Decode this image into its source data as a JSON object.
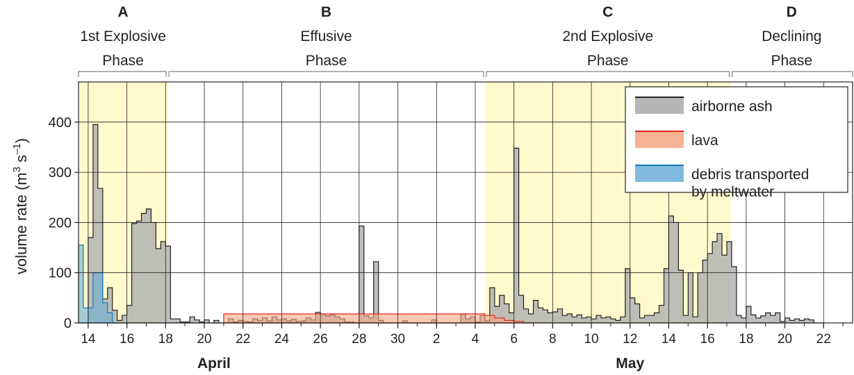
{
  "chart_data": {
    "type": "area",
    "ylabel_main": "volume rate (m",
    "ylabel_sup1": "3",
    "ylabel_mid": " s",
    "ylabel_sup2": "–1",
    "ylabel_end": ")",
    "ylim": [
      0,
      480
    ],
    "yticks": [
      0,
      100,
      200,
      300,
      400
    ],
    "xlim": [
      13.5,
      53.5
    ],
    "x_ticks": [
      {
        "x": 14,
        "label": "14"
      },
      {
        "x": 16,
        "label": "16"
      },
      {
        "x": 18,
        "label": "18"
      },
      {
        "x": 20,
        "label": "20"
      },
      {
        "x": 22,
        "label": "22"
      },
      {
        "x": 24,
        "label": "24"
      },
      {
        "x": 26,
        "label": "26"
      },
      {
        "x": 28,
        "label": "28"
      },
      {
        "x": 30,
        "label": "30"
      },
      {
        "x": 32,
        "label": "2"
      },
      {
        "x": 34,
        "label": "4"
      },
      {
        "x": 36,
        "label": "6"
      },
      {
        "x": 38,
        "label": "8"
      },
      {
        "x": 40,
        "label": "10"
      },
      {
        "x": 42,
        "label": "12"
      },
      {
        "x": 44,
        "label": "14"
      },
      {
        "x": 46,
        "label": "16"
      },
      {
        "x": 48,
        "label": "18"
      },
      {
        "x": 50,
        "label": "20"
      },
      {
        "x": 52,
        "label": "22"
      }
    ],
    "month_labels": [
      {
        "x": 20.5,
        "label": "April"
      },
      {
        "x": 42.0,
        "label": "May"
      }
    ],
    "grid": true,
    "phases": [
      {
        "letter": "A",
        "line1": "1st Explosive",
        "line2": "Phase",
        "start": 13.5,
        "end": 18.1,
        "shaded": true
      },
      {
        "letter": "B",
        "line1": "Effusive",
        "line2": "Phase",
        "start": 18.1,
        "end": 34.5,
        "shaded": false
      },
      {
        "letter": "C",
        "line1": "2nd Explosive",
        "line2": "Phase",
        "start": 34.5,
        "end": 47.2,
        "shaded": true
      },
      {
        "letter": "D",
        "line1": "Declining",
        "line2": "Phase",
        "start": 47.2,
        "end": 53.5,
        "shaded": false
      }
    ],
    "legend_position": "top-right",
    "series": [
      {
        "name": "airborne ash",
        "fill": "#a7a9ac",
        "stroke": "#231f20",
        "points": [
          [
            13.5,
            0
          ],
          [
            14.0,
            170
          ],
          [
            14.25,
            395
          ],
          [
            14.5,
            268
          ],
          [
            14.75,
            48
          ],
          [
            15.0,
            70
          ],
          [
            15.25,
            25
          ],
          [
            15.5,
            5
          ],
          [
            15.75,
            15
          ],
          [
            16.0,
            35
          ],
          [
            16.25,
            198
          ],
          [
            16.5,
            203
          ],
          [
            16.75,
            218
          ],
          [
            17.0,
            227
          ],
          [
            17.25,
            200
          ],
          [
            17.5,
            148
          ],
          [
            17.75,
            162
          ],
          [
            18.0,
            153
          ],
          [
            18.25,
            8
          ],
          [
            18.75,
            2
          ],
          [
            19.25,
            12
          ],
          [
            19.5,
            6
          ],
          [
            19.75,
            2
          ],
          [
            20.0,
            6
          ],
          [
            20.25,
            0
          ],
          [
            20.5,
            5
          ],
          [
            20.75,
            0
          ],
          [
            21.25,
            8
          ],
          [
            21.5,
            2
          ],
          [
            21.75,
            5
          ],
          [
            22.0,
            3
          ],
          [
            22.25,
            2
          ],
          [
            22.5,
            8
          ],
          [
            22.75,
            5
          ],
          [
            23.0,
            10
          ],
          [
            23.25,
            4
          ],
          [
            23.5,
            12
          ],
          [
            23.75,
            6
          ],
          [
            24.0,
            8
          ],
          [
            24.25,
            4
          ],
          [
            24.5,
            7
          ],
          [
            24.75,
            3
          ],
          [
            25.0,
            4
          ],
          [
            25.25,
            10
          ],
          [
            25.5,
            6
          ],
          [
            25.75,
            21
          ],
          [
            26.0,
            18
          ],
          [
            26.25,
            14
          ],
          [
            26.5,
            16
          ],
          [
            26.75,
            12
          ],
          [
            27.0,
            8
          ],
          [
            27.25,
            2
          ],
          [
            27.75,
            0
          ],
          [
            28.0,
            193
          ],
          [
            28.25,
            14
          ],
          [
            28.5,
            10
          ],
          [
            28.75,
            122
          ],
          [
            29.0,
            5
          ],
          [
            29.25,
            0
          ],
          [
            30.0,
            0
          ],
          [
            30.25,
            4
          ],
          [
            30.5,
            0
          ],
          [
            31.75,
            6
          ],
          [
            32.0,
            0
          ],
          [
            33.25,
            18
          ],
          [
            33.5,
            8
          ],
          [
            33.75,
            12
          ],
          [
            34.0,
            2
          ],
          [
            34.25,
            15
          ],
          [
            34.5,
            4
          ],
          [
            34.75,
            70
          ],
          [
            35.0,
            33
          ],
          [
            35.25,
            55
          ],
          [
            35.5,
            38
          ],
          [
            35.75,
            20
          ],
          [
            36.0,
            348
          ],
          [
            36.25,
            55
          ],
          [
            36.5,
            28
          ],
          [
            36.75,
            18
          ],
          [
            37.0,
            45
          ],
          [
            37.25,
            30
          ],
          [
            37.5,
            26
          ],
          [
            37.75,
            20
          ],
          [
            38.0,
            22
          ],
          [
            38.25,
            28
          ],
          [
            38.5,
            15
          ],
          [
            38.75,
            18
          ],
          [
            39.0,
            12
          ],
          [
            39.25,
            16
          ],
          [
            39.5,
            10
          ],
          [
            39.75,
            12
          ],
          [
            40.0,
            8
          ],
          [
            40.25,
            15
          ],
          [
            40.5,
            10
          ],
          [
            40.75,
            12
          ],
          [
            41.0,
            8
          ],
          [
            41.25,
            5
          ],
          [
            41.5,
            12
          ],
          [
            41.75,
            108
          ],
          [
            42.0,
            50
          ],
          [
            42.25,
            38
          ],
          [
            42.5,
            10
          ],
          [
            42.75,
            15
          ],
          [
            43.0,
            15
          ],
          [
            43.25,
            20
          ],
          [
            43.5,
            35
          ],
          [
            43.75,
            108
          ],
          [
            44.0,
            213
          ],
          [
            44.25,
            200
          ],
          [
            44.5,
            105
          ],
          [
            44.75,
            15
          ],
          [
            45.0,
            100
          ],
          [
            45.25,
            12
          ],
          [
            45.5,
            100
          ],
          [
            45.75,
            125
          ],
          [
            46.0,
            138
          ],
          [
            46.25,
            162
          ],
          [
            46.5,
            178
          ],
          [
            46.75,
            135
          ],
          [
            47.0,
            162
          ],
          [
            47.25,
            112
          ],
          [
            47.5,
            15
          ],
          [
            47.75,
            10
          ],
          [
            48.0,
            33
          ],
          [
            48.25,
            16
          ],
          [
            48.5,
            10
          ],
          [
            48.75,
            14
          ],
          [
            49.0,
            20
          ],
          [
            49.25,
            15
          ],
          [
            49.5,
            20
          ],
          [
            49.75,
            3
          ],
          [
            50.0,
            10
          ],
          [
            50.25,
            5
          ],
          [
            50.5,
            8
          ],
          [
            50.75,
            5
          ],
          [
            51.0,
            8
          ],
          [
            51.25,
            6
          ],
          [
            51.5,
            0
          ],
          [
            51.75,
            0
          ]
        ]
      },
      {
        "name": "lava",
        "fill": "#f4a582",
        "stroke": "#e1261c",
        "points": [
          [
            21.0,
            18
          ],
          [
            34.5,
            15
          ],
          [
            35.0,
            10
          ],
          [
            35.5,
            5
          ],
          [
            36.0,
            3
          ],
          [
            36.5,
            0
          ],
          [
            37.0,
            0
          ]
        ]
      },
      {
        "name": "debris transported by meltwater",
        "fill": "#6baed6",
        "stroke": "#0b7bc1",
        "points": [
          [
            13.5,
            155
          ],
          [
            13.75,
            30
          ],
          [
            14.25,
            100
          ],
          [
            14.75,
            40
          ],
          [
            15.0,
            20
          ],
          [
            15.25,
            0
          ],
          [
            15.5,
            0
          ]
        ]
      }
    ],
    "legend": [
      {
        "line1": "airborne ash",
        "line2": "",
        "fill": "#a7a9ac",
        "stroke": "#231f20"
      },
      {
        "line1": "lava",
        "line2": "",
        "fill": "#f4a582",
        "stroke": "#e1261c"
      },
      {
        "line1": "debris transported",
        "line2": "by meltwater",
        "fill": "#6baed6",
        "stroke": "#0b7bc1"
      }
    ],
    "colors": {
      "phase_shade": "#fffacd",
      "grid": "#231f20",
      "axis": "#231f20"
    }
  }
}
